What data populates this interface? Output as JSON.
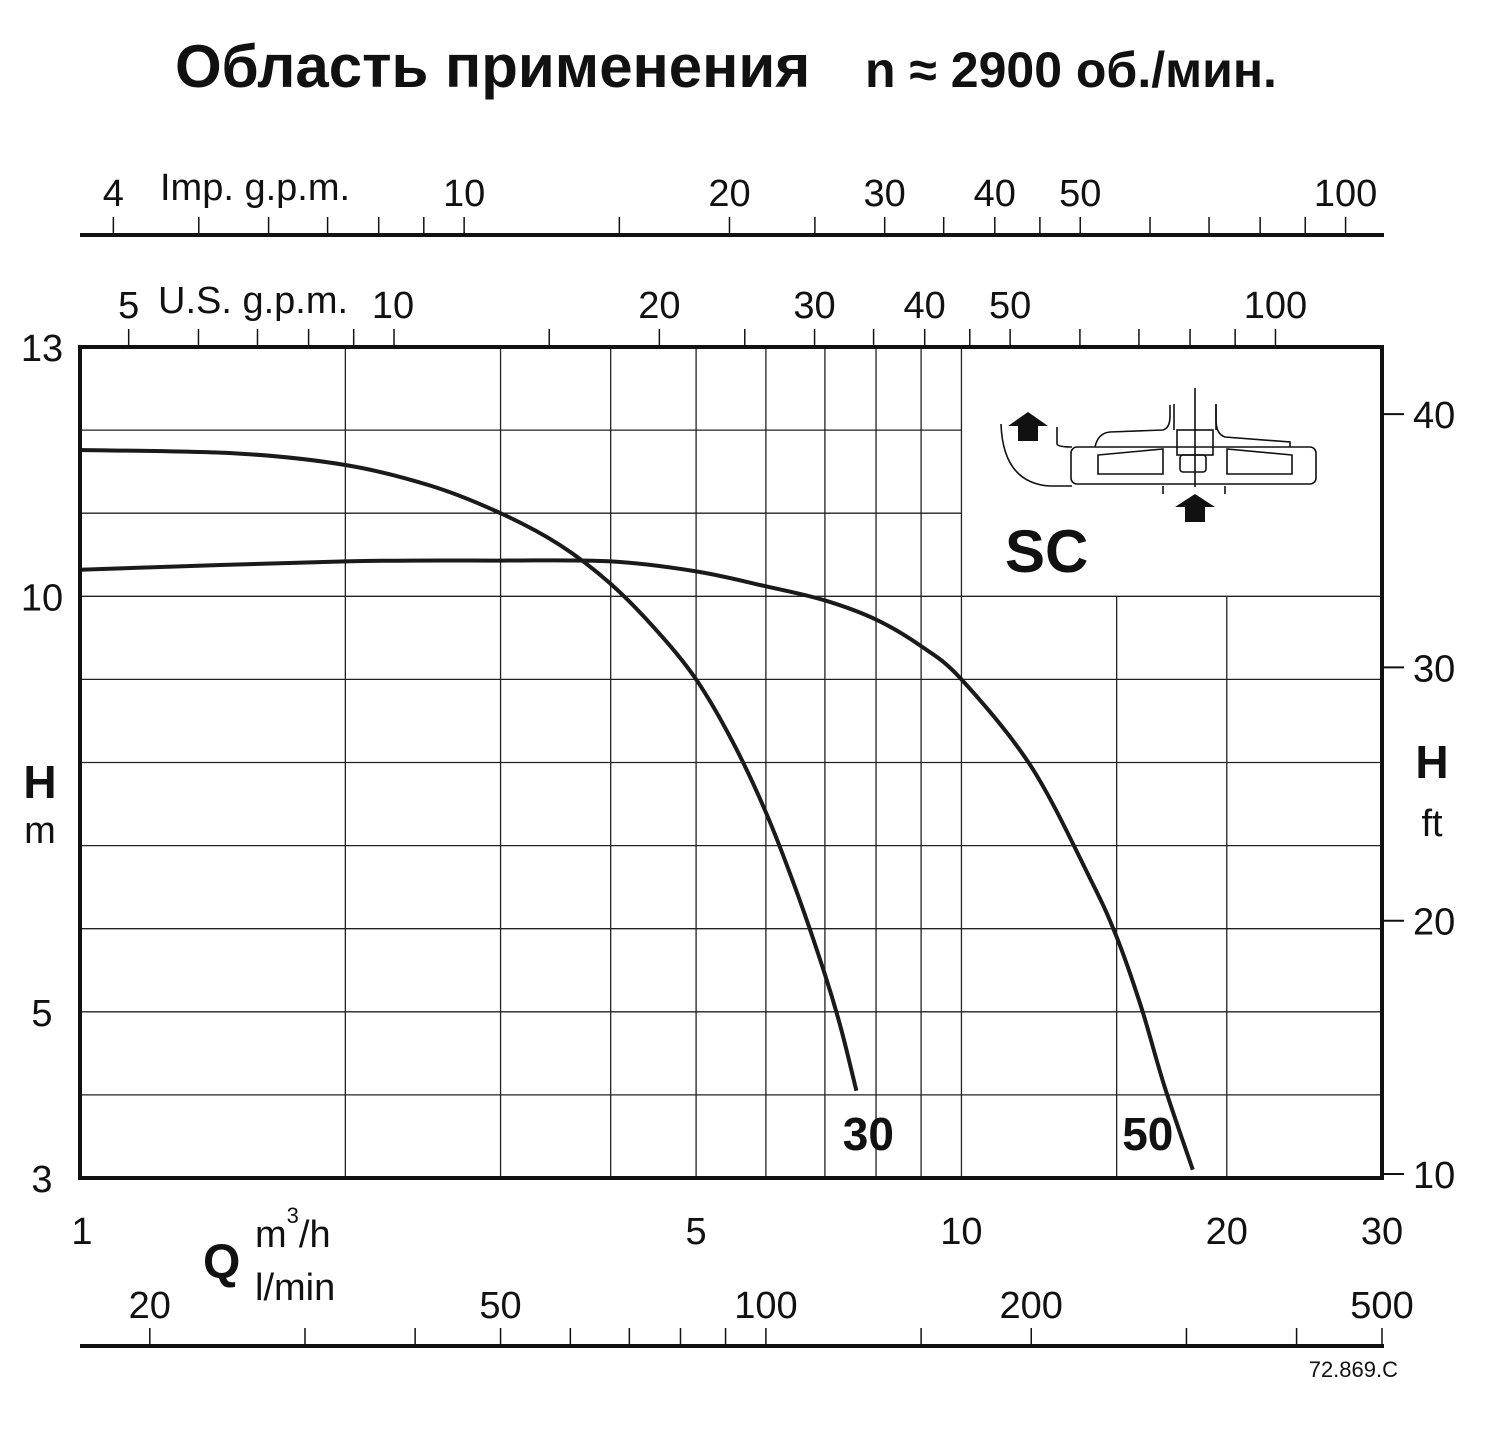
{
  "chart_data": {
    "type": "line",
    "title_main": "Область применения",
    "title_speed": "n ≈ 2900 об./мин.",
    "x_scale": "log",
    "xlim": [
      1,
      30
    ],
    "ylim": [
      3,
      13
    ],
    "x_unit": "m³/h",
    "x_unit_base": "m",
    "x_unit_sup": "3",
    "x_unit_rest": "/h",
    "x_symbol": "Q",
    "x2_unit": "l/min",
    "y_symbol": "H",
    "y_unit": "m",
    "y2_symbol": "H",
    "y2_unit": "ft",
    "x_ticks": [
      1,
      5,
      10,
      20,
      30
    ],
    "x_grid": [
      2,
      3,
      4,
      5,
      6,
      7,
      8,
      9,
      10,
      15,
      20
    ],
    "y_ticks": [
      3,
      5,
      10,
      13
    ],
    "y_grid": [
      4,
      5,
      6,
      7,
      8,
      9,
      10,
      11,
      12
    ],
    "ft_ticks": [
      10,
      20,
      30,
      40
    ],
    "imp_label": "Imp. g.p.m.",
    "imp_labels": [
      4,
      10,
      20,
      30,
      40,
      50,
      100
    ],
    "imp_ticks": [
      4,
      5,
      6,
      7,
      8,
      9,
      10,
      15,
      20,
      25,
      30,
      35,
      40,
      45,
      50,
      60,
      70,
      80,
      90,
      100
    ],
    "us_label": "U.S. g.p.m.",
    "us_labels": [
      5,
      10,
      20,
      30,
      40,
      50,
      100
    ],
    "us_ticks": [
      5,
      6,
      7,
      8,
      9,
      10,
      15,
      20,
      25,
      30,
      35,
      40,
      45,
      50,
      60,
      70,
      80,
      90,
      100
    ],
    "lmin_labels": [
      20,
      50,
      100,
      200,
      500
    ],
    "lmin_ticks": [
      20,
      30,
      40,
      50,
      60,
      70,
      80,
      90,
      100,
      150,
      200,
      300,
      400,
      500
    ],
    "series": [
      {
        "name": "30",
        "x": [
          1,
          1.5,
          2,
          2.5,
          3,
          3.5,
          4,
          4.5,
          5,
          5.5,
          6,
          6.5,
          7,
          7.3,
          7.6
        ],
        "y": [
          11.76,
          11.72,
          11.58,
          11.33,
          11.0,
          10.62,
          10.15,
          9.6,
          9.0,
          8.25,
          7.4,
          6.45,
          5.45,
          4.8,
          4.05
        ]
      },
      {
        "name": "50",
        "x": [
          1,
          2,
          3,
          4,
          5,
          6,
          7,
          8,
          9,
          10,
          12,
          14,
          15,
          16,
          17,
          18.3
        ],
        "y": [
          10.32,
          10.42,
          10.43,
          10.42,
          10.3,
          10.12,
          9.95,
          9.72,
          9.4,
          9.0,
          7.95,
          6.6,
          5.9,
          5.05,
          4.1,
          3.1
        ]
      }
    ],
    "inset_label": "SC",
    "figure_code": "72.869.C"
  }
}
